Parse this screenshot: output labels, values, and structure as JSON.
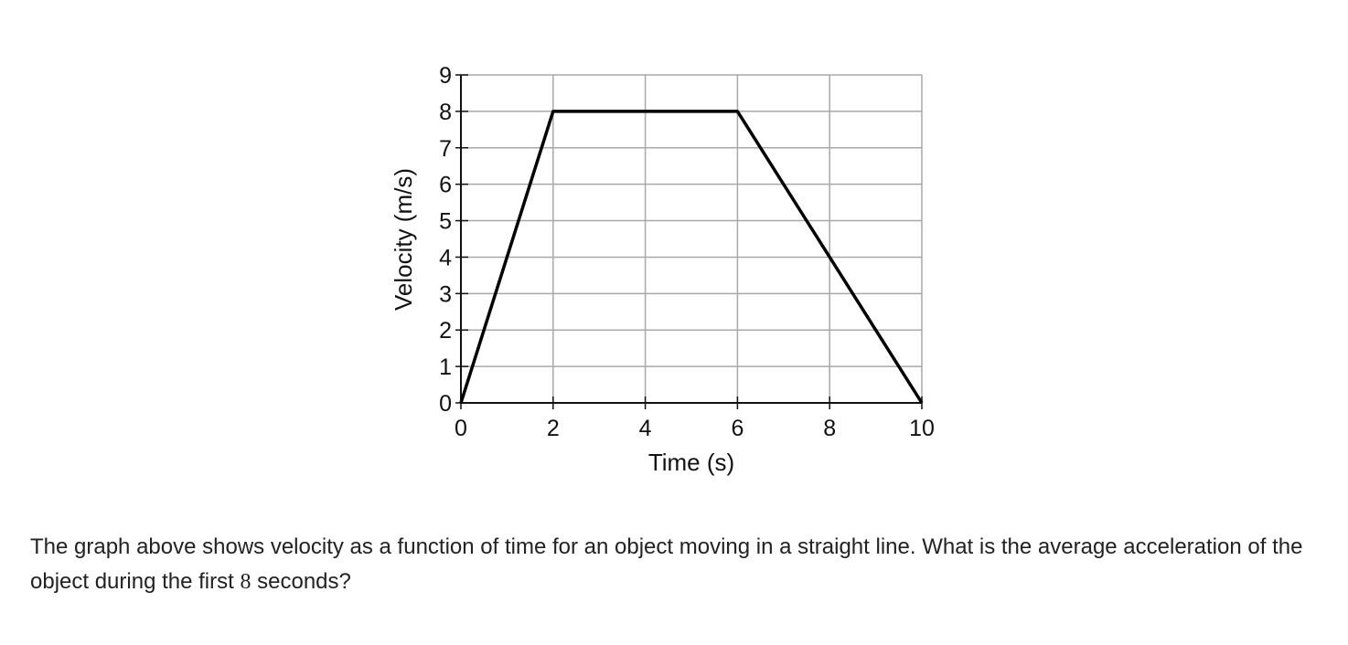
{
  "chart_data": {
    "type": "line",
    "title": "",
    "xlabel": "Time (s)",
    "ylabel": "Velocity (m/s)",
    "xlim": [
      0,
      10
    ],
    "ylim": [
      0,
      9
    ],
    "xticks": [
      "0",
      "2",
      "4",
      "6",
      "8",
      "10"
    ],
    "yticks": [
      "0",
      "1",
      "2",
      "3",
      "4",
      "5",
      "6",
      "7",
      "8",
      "9"
    ],
    "grid": true,
    "series": [
      {
        "x": [
          0,
          2,
          6,
          10
        ],
        "y": [
          0,
          8,
          8,
          0
        ],
        "color": "#000000"
      }
    ]
  },
  "question": {
    "text_before": "The graph above shows velocity as a function of time for an object moving in a straight line. What is the average acceleration of the object during the first ",
    "number": "8",
    "text_after": " seconds?"
  }
}
